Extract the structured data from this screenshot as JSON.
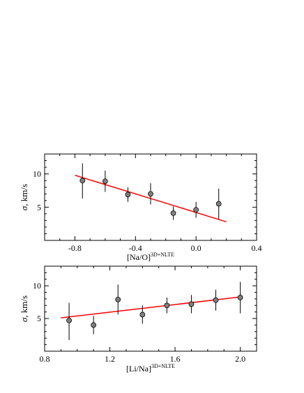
{
  "chart_data": [
    {
      "type": "scatter",
      "x_label_main": "[Na/O]",
      "x_label_sup": "3D+NLTE",
      "y_label_sym": "σ",
      "y_label_unit": ", km/s",
      "xlim": [
        -1.0,
        0.4
      ],
      "ylim": [
        0,
        13
      ],
      "x_ticks": [
        -0.8,
        -0.4,
        0.0,
        0.4
      ],
      "x_tick_labels": [
        "-0.8",
        "-0.4",
        "0.0",
        "0.4"
      ],
      "y_ticks": [
        5,
        10
      ],
      "y_tick_labels": [
        "5",
        "10"
      ],
      "points": [
        {
          "x": -0.75,
          "y": 9.0,
          "err_low": 2.7,
          "err_high": 2.6
        },
        {
          "x": -0.6,
          "y": 8.9,
          "err_low": 1.6,
          "err_high": 1.6
        },
        {
          "x": -0.45,
          "y": 6.9,
          "err_low": 1.1,
          "err_high": 1.1
        },
        {
          "x": -0.3,
          "y": 7.0,
          "err_low": 1.6,
          "err_high": 1.6
        },
        {
          "x": -0.15,
          "y": 4.1,
          "err_low": 1.0,
          "err_high": 1.0
        },
        {
          "x": 0.0,
          "y": 4.6,
          "err_low": 1.2,
          "err_high": 1.2
        },
        {
          "x": 0.15,
          "y": 5.5,
          "err_low": 2.3,
          "err_high": 2.3
        }
      ],
      "fit_line": {
        "x": [
          -0.8,
          0.2
        ],
        "y": [
          9.8,
          2.8
        ]
      },
      "colors": {
        "fit": "#ff0000",
        "marker": "#808080"
      }
    },
    {
      "type": "scatter",
      "x_label_main": "[Li/Na]",
      "x_label_sup": "3D+NLTE",
      "y_label_sym": "σ",
      "y_label_unit": ", km/s",
      "xlim": [
        0.8,
        2.1
      ],
      "ylim": [
        0,
        13
      ],
      "x_ticks": [
        0.8,
        1.2,
        1.6,
        2.0
      ],
      "x_tick_labels": [
        "0.8",
        "1.2",
        "1.6",
        "2.0"
      ],
      "y_ticks": [
        5,
        10
      ],
      "y_tick_labels": [
        "5",
        "10"
      ],
      "points": [
        {
          "x": 0.95,
          "y": 4.7,
          "err_low": 3.0,
          "err_high": 2.7
        },
        {
          "x": 1.1,
          "y": 4.0,
          "err_low": 1.4,
          "err_high": 1.4
        },
        {
          "x": 1.25,
          "y": 7.9,
          "err_low": 2.3,
          "err_high": 2.3
        },
        {
          "x": 1.4,
          "y": 5.6,
          "err_low": 1.4,
          "err_high": 1.4
        },
        {
          "x": 1.55,
          "y": 7.0,
          "err_low": 1.2,
          "err_high": 1.2
        },
        {
          "x": 1.7,
          "y": 7.2,
          "err_low": 1.4,
          "err_high": 1.4
        },
        {
          "x": 1.85,
          "y": 7.8,
          "err_low": 1.6,
          "err_high": 1.6
        },
        {
          "x": 2.0,
          "y": 8.2,
          "err_low": 2.4,
          "err_high": 2.4
        }
      ],
      "fit_line": {
        "x": [
          0.9,
          2.0
        ],
        "y": [
          5.1,
          8.3
        ]
      },
      "colors": {
        "fit": "#ff0000",
        "marker": "#808080"
      }
    }
  ]
}
